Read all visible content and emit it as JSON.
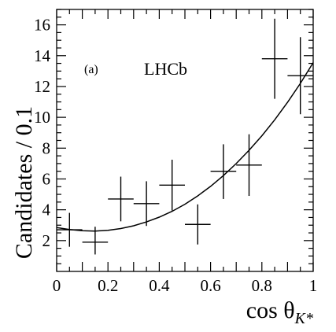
{
  "chart_data": {
    "type": "scatter",
    "xlabel": "cos θ",
    "xlabel_sub": "K*",
    "ylabel": "Candidates / 0.1",
    "xlim": [
      0,
      1
    ],
    "ylim": [
      0,
      17
    ],
    "x_ticks": [
      "0",
      "0.2",
      "0.4",
      "0.6",
      "0.8",
      "1"
    ],
    "y_ticks": [
      "2",
      "4",
      "6",
      "8",
      "10",
      "12",
      "14",
      "16"
    ],
    "annotations": {
      "panel": "(a)",
      "experiment": "LHCb"
    },
    "points": [
      {
        "x": 0.05,
        "y": 2.7,
        "xerr": 0.05,
        "yerr_low": 1.1,
        "yerr_high": 1.1
      },
      {
        "x": 0.15,
        "y": 1.9,
        "xerr": 0.05,
        "yerr_low": 0.8,
        "yerr_high": 1.0
      },
      {
        "x": 0.25,
        "y": 4.7,
        "xerr": 0.05,
        "yerr_low": 1.45,
        "yerr_high": 1.45
      },
      {
        "x": 0.35,
        "y": 4.4,
        "xerr": 0.05,
        "yerr_low": 1.45,
        "yerr_high": 1.45
      },
      {
        "x": 0.45,
        "y": 5.6,
        "xerr": 0.05,
        "yerr_low": 1.65,
        "yerr_high": 1.65
      },
      {
        "x": 0.55,
        "y": 3.05,
        "xerr": 0.05,
        "yerr_low": 1.3,
        "yerr_high": 1.3
      },
      {
        "x": 0.65,
        "y": 6.5,
        "xerr": 0.05,
        "yerr_low": 1.8,
        "yerr_high": 1.75
      },
      {
        "x": 0.75,
        "y": 6.9,
        "xerr": 0.05,
        "yerr_low": 2.0,
        "yerr_high": 2.0
      },
      {
        "x": 0.85,
        "y": 13.8,
        "xerr": 0.05,
        "yerr_low": 2.6,
        "yerr_high": 2.6
      },
      {
        "x": 0.95,
        "y": 12.7,
        "xerr": 0.05,
        "yerr_low": 2.5,
        "yerr_high": 2.5
      }
    ],
    "fit_curve": {
      "x": [
        0,
        0.05,
        0.1,
        0.15,
        0.2,
        0.25,
        0.3,
        0.35,
        0.4,
        0.45,
        0.5,
        0.55,
        0.6,
        0.65,
        0.7,
        0.75,
        0.8,
        0.85,
        0.9,
        0.95,
        1.0
      ],
      "y": [
        2.85,
        2.72,
        2.64,
        2.62,
        2.67,
        2.78,
        2.96,
        3.21,
        3.52,
        3.9,
        4.36,
        4.9,
        5.52,
        6.22,
        7.0,
        7.86,
        8.8,
        9.84,
        10.97,
        12.2,
        13.55
      ]
    }
  }
}
